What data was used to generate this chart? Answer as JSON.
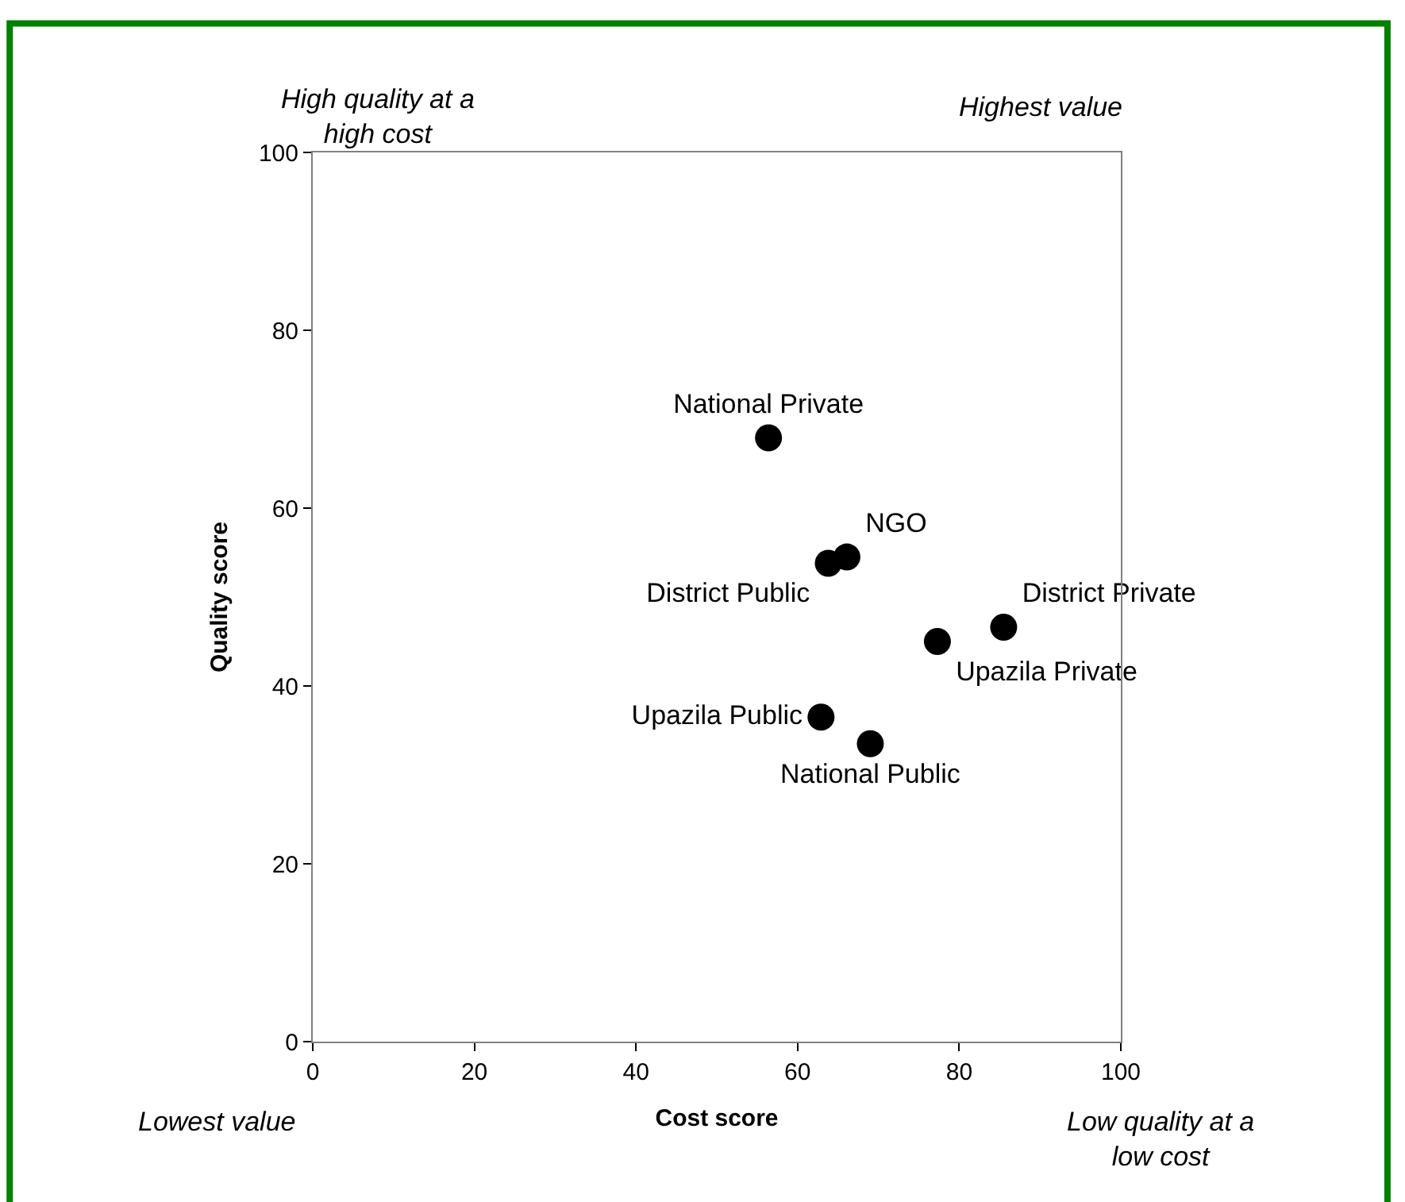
{
  "chart_data": {
    "type": "scatter",
    "xlabel": "Cost score",
    "ylabel": "Quality score",
    "xlim": [
      0,
      100
    ],
    "xticks": [
      0,
      20,
      40,
      60,
      80,
      100
    ],
    "ylim": [
      0,
      100
    ],
    "yticks": [
      0,
      20,
      40,
      60,
      80,
      100
    ],
    "legend": false,
    "marker": "circle",
    "series": [
      {
        "name": "National Private",
        "color": "#000000",
        "x": [
          56.4
        ],
        "values": [
          67.9
        ]
      },
      {
        "name": "NGO",
        "color": "#000000",
        "x": [
          66.1
        ],
        "values": [
          54.5
        ]
      },
      {
        "name": "District Public",
        "color": "#000000",
        "x": [
          63.8
        ],
        "values": [
          53.8
        ]
      },
      {
        "name": "District Private",
        "color": "#000000",
        "x": [
          85.5
        ],
        "values": [
          46.6
        ]
      },
      {
        "name": "Upazila Private",
        "color": "#000000",
        "x": [
          77.3
        ],
        "values": [
          45.0
        ]
      },
      {
        "name": "Upazila Public",
        "color": "#000000",
        "x": [
          62.9
        ],
        "values": [
          36.5
        ]
      },
      {
        "name": "National Public",
        "color": "#000000",
        "x": [
          69.0
        ],
        "values": [
          33.5
        ]
      }
    ],
    "annotations": [
      "High quality at a high cost",
      "Highest value",
      "Lowest value",
      "Low quality at a low cost"
    ]
  }
}
